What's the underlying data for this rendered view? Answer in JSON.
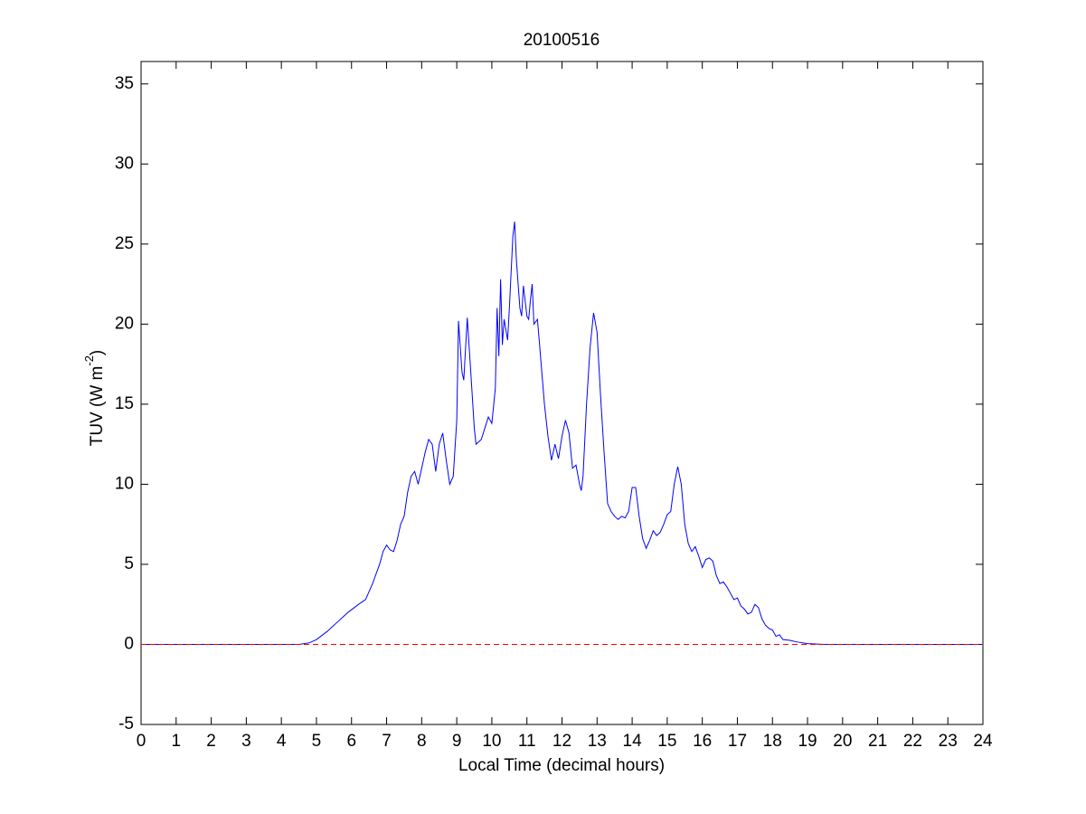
{
  "chart_data": {
    "type": "line",
    "title": "20100516",
    "xlabel": "Local Time (decimal hours)",
    "ylabel_parts": [
      "TUV (W m",
      "-2",
      ")"
    ],
    "xlim": [
      0,
      24
    ],
    "ylim": [
      -5,
      36.4
    ],
    "xticks": [
      0,
      1,
      2,
      3,
      4,
      5,
      6,
      7,
      8,
      9,
      10,
      11,
      12,
      13,
      14,
      15,
      16,
      17,
      18,
      19,
      20,
      21,
      22,
      23,
      24
    ],
    "yticks": [
      -5,
      0,
      5,
      10,
      15,
      20,
      25,
      30,
      35
    ],
    "grid": false,
    "box": true,
    "hline": {
      "y": 0,
      "color": "#ff0000",
      "dashed": true
    },
    "series": [
      {
        "color": "#0000ff",
        "x": [
          0,
          4.5,
          4.8,
          5.0,
          5.3,
          5.6,
          5.9,
          6.2,
          6.4,
          6.6,
          6.8,
          6.9,
          7.0,
          7.1,
          7.2,
          7.3,
          7.4,
          7.5,
          7.6,
          7.7,
          7.8,
          7.9,
          8.0,
          8.1,
          8.2,
          8.3,
          8.4,
          8.5,
          8.6,
          8.7,
          8.8,
          8.9,
          9.0,
          9.05,
          9.15,
          9.2,
          9.3,
          9.4,
          9.5,
          9.55,
          9.7,
          9.8,
          9.9,
          10.0,
          10.1,
          10.15,
          10.2,
          10.25,
          10.3,
          10.35,
          10.45,
          10.5,
          10.6,
          10.65,
          10.7,
          10.8,
          10.85,
          10.9,
          11.0,
          11.05,
          11.1,
          11.15,
          11.2,
          11.3,
          11.35,
          11.5,
          11.6,
          11.7,
          11.8,
          11.9,
          12.0,
          12.1,
          12.2,
          12.3,
          12.4,
          12.5,
          12.55,
          12.6,
          12.7,
          12.8,
          12.9,
          13.0,
          13.1,
          13.2,
          13.3,
          13.4,
          13.5,
          13.6,
          13.7,
          13.8,
          13.9,
          14.0,
          14.1,
          14.2,
          14.3,
          14.4,
          14.5,
          14.6,
          14.7,
          14.8,
          14.9,
          15.0,
          15.1,
          15.2,
          15.3,
          15.4,
          15.5,
          15.6,
          15.7,
          15.8,
          15.9,
          16.0,
          16.1,
          16.2,
          16.3,
          16.4,
          16.5,
          16.6,
          16.7,
          16.8,
          16.9,
          17.0,
          17.1,
          17.2,
          17.3,
          17.4,
          17.5,
          17.6,
          17.7,
          17.8,
          17.9,
          18.0,
          18.1,
          18.2,
          18.3,
          18.5,
          18.7,
          19.0,
          19.5,
          24
        ],
        "values": [
          0,
          0,
          0.1,
          0.3,
          0.8,
          1.4,
          2.0,
          2.5,
          2.8,
          3.8,
          5.0,
          5.8,
          6.2,
          5.9,
          5.8,
          6.5,
          7.5,
          8.0,
          9.5,
          10.5,
          10.8,
          10.0,
          11.0,
          12.0,
          12.8,
          12.5,
          10.8,
          12.5,
          13.2,
          11.5,
          10.0,
          10.5,
          14,
          20.2,
          17,
          16.5,
          20.4,
          17,
          13.5,
          12.5,
          12.8,
          13.5,
          14.2,
          13.8,
          16,
          21,
          18,
          22.8,
          18.7,
          20.3,
          19,
          21,
          25.5,
          26.4,
          24,
          21,
          20.5,
          22.4,
          20.5,
          20.3,
          21.5,
          22.5,
          20,
          20.3,
          19,
          15,
          13,
          11.5,
          12.5,
          11.6,
          13,
          14,
          13.2,
          11,
          11.2,
          10,
          9.6,
          10.5,
          15,
          18.5,
          20.7,
          19.5,
          15.5,
          12,
          8.8,
          8.3,
          8.0,
          7.8,
          8.0,
          7.9,
          8.3,
          9.8,
          9.8,
          8.0,
          6.6,
          6.0,
          6.5,
          7.1,
          6.8,
          7.0,
          7.5,
          8.1,
          8.3,
          10,
          11.1,
          10,
          7.5,
          6.3,
          5.8,
          6.1,
          5.5,
          4.8,
          5.3,
          5.4,
          5.2,
          4.3,
          3.8,
          3.9,
          3.6,
          3.2,
          2.8,
          2.9,
          2.4,
          2.2,
          1.9,
          2.0,
          2.5,
          2.3,
          1.6,
          1.2,
          1.0,
          0.9,
          0.5,
          0.6,
          0.3,
          0.25,
          0.15,
          0.05,
          0,
          0
        ]
      }
    ]
  }
}
